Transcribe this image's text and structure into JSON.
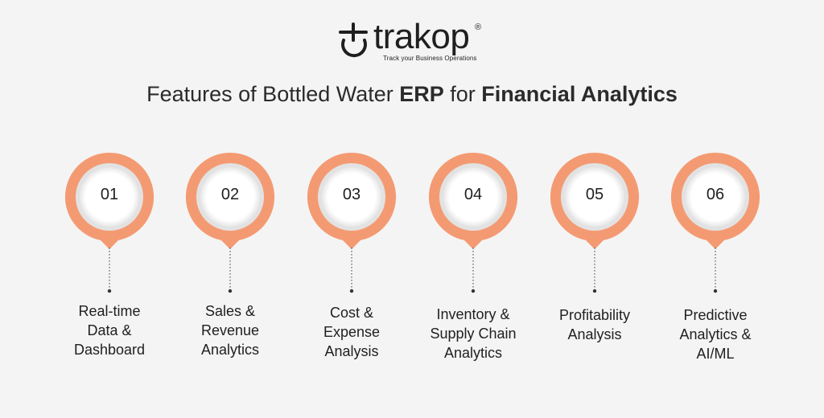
{
  "brand": {
    "name": "trakop",
    "registered_mark": "®",
    "tagline": "Track your Business Operations"
  },
  "title": {
    "part1": "Features of Bottled Water ",
    "bold1": "ERP",
    "part2": " for ",
    "bold2": "Financial Analytics"
  },
  "colors": {
    "accent": "#f49a72",
    "background": "#f4f4f4",
    "text": "#2b2b2b"
  },
  "features": [
    {
      "number": "01",
      "label_lines": [
        "Real-time",
        "Data &",
        "Dashboard"
      ]
    },
    {
      "number": "02",
      "label_lines": [
        "Sales &",
        "Revenue",
        "Analytics"
      ]
    },
    {
      "number": "03",
      "label_lines": [
        "Cost &",
        "Expense",
        "Analysis"
      ]
    },
    {
      "number": "04",
      "label_lines": [
        "Inventory &",
        "Supply Chain",
        "Analytics"
      ]
    },
    {
      "number": "05",
      "label_lines": [
        "Profitability",
        "Analysis"
      ]
    },
    {
      "number": "06",
      "label_lines": [
        "Predictive",
        "Analytics &",
        "AI/ML"
      ]
    }
  ]
}
